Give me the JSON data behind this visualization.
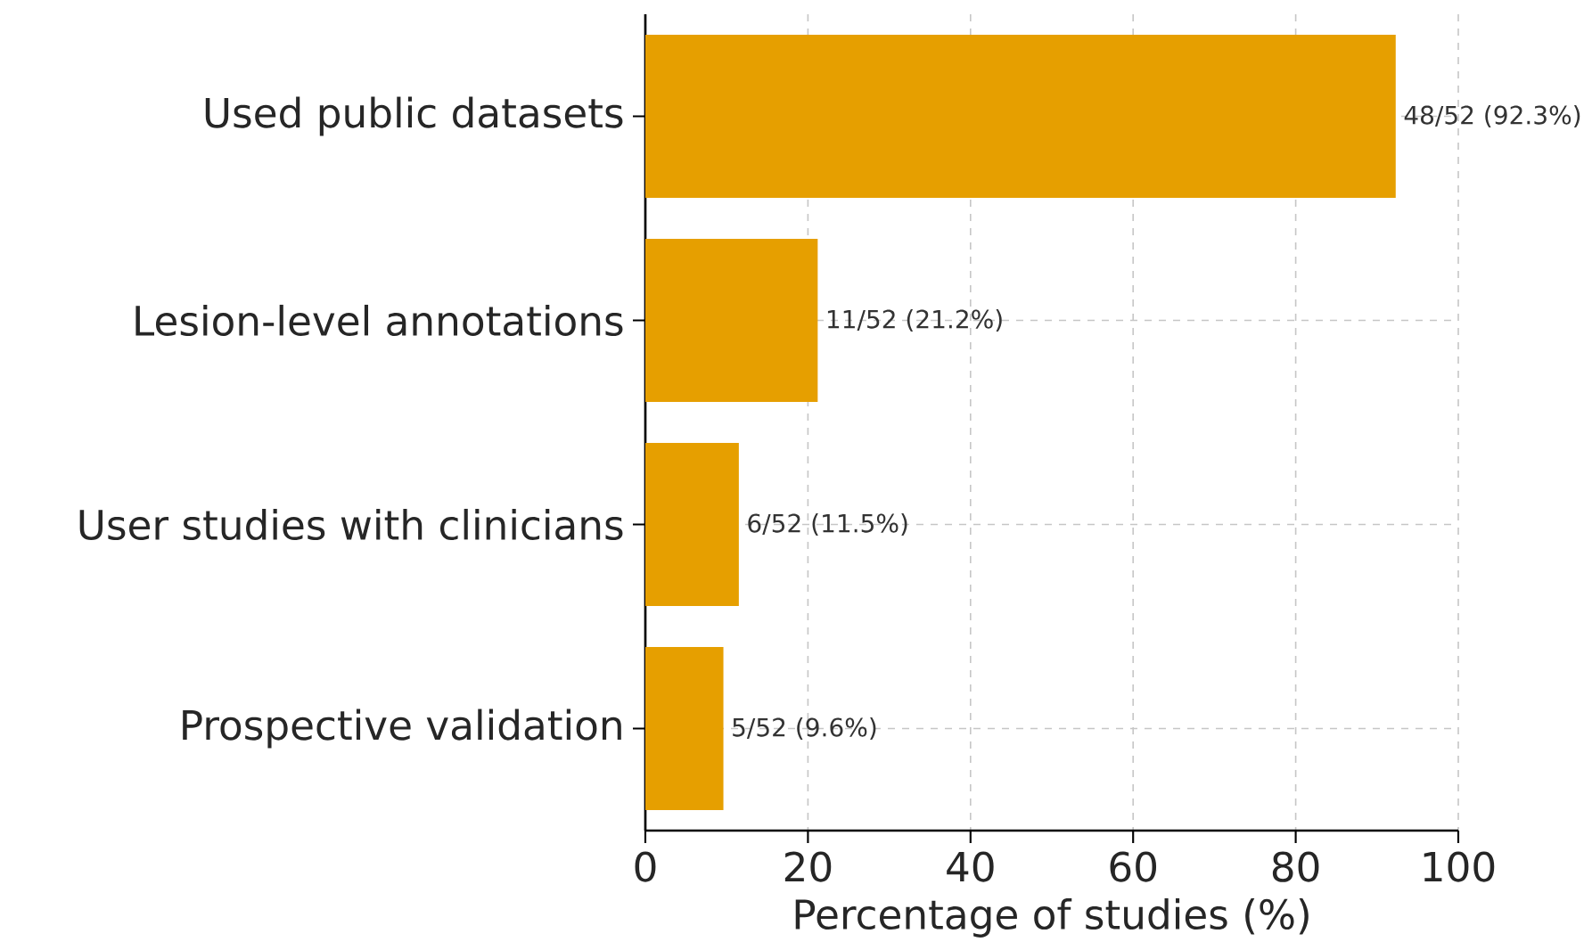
{
  "chart_data": {
    "type": "bar",
    "orientation": "horizontal",
    "xlabel": "Percentage of studies (%)",
    "categories": [
      "Used public datasets",
      "Lesion-level annotations",
      "User studies with clinicians",
      "Prospective validation"
    ],
    "values": [
      92.3,
      21.2,
      11.5,
      9.6
    ],
    "value_labels": [
      "48/52 (92.3%)",
      "11/52 (21.2%)",
      "6/52 (11.5%)",
      "5/52 (9.6%)"
    ],
    "color": "#e69f00",
    "xlim": [
      0,
      100
    ],
    "xticks": [
      0,
      20,
      40,
      60,
      80,
      100
    ],
    "grid": true
  }
}
